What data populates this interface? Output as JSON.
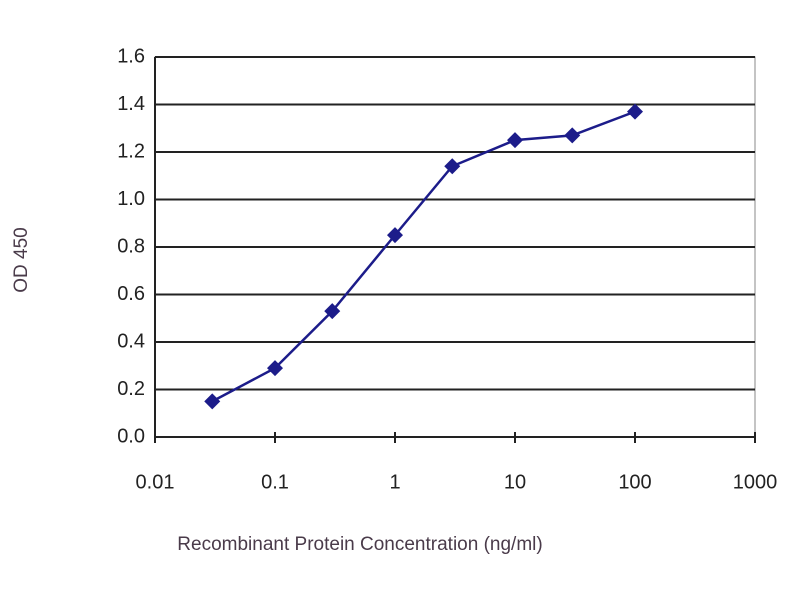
{
  "chart_data": {
    "type": "line",
    "x_label": "Recombinant Protein Concentration (ng/ml)",
    "y_label": "OD 450",
    "x": [
      0.03,
      0.1,
      0.3,
      1,
      3,
      10,
      30,
      100
    ],
    "series": [
      {
        "color": "#1c1c8a",
        "values": [
          0.15,
          0.29,
          0.53,
          0.85,
          1.14,
          1.25,
          1.27,
          1.37
        ]
      }
    ],
    "x_log": true,
    "xlim": [
      0.01,
      1000
    ],
    "xticks": [
      0.01,
      0.1,
      1,
      10,
      100,
      1000
    ],
    "ylim": [
      0,
      1.6
    ],
    "yticks": [
      {
        "value": 0,
        "label": "0.0"
      },
      0.2,
      0.4,
      0.6,
      0.8,
      {
        "value": 1,
        "label": "1.0"
      },
      1.2,
      1.4,
      1.6
    ],
    "grid": true
  }
}
